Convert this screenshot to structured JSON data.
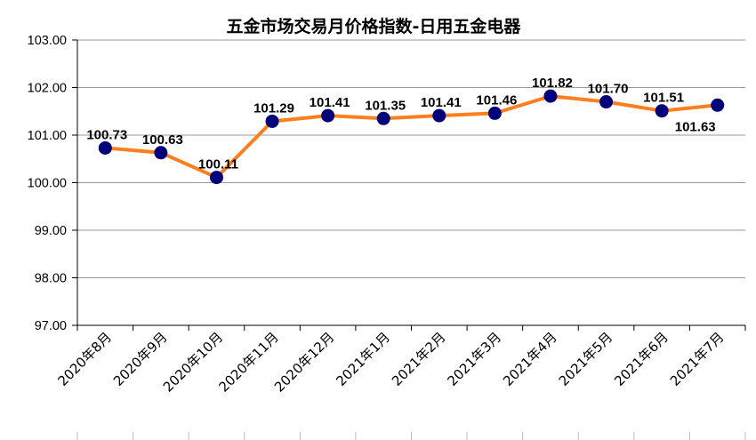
{
  "chart_data": {
    "type": "line",
    "title": "五金市场交易月价格指数-日用五金电器",
    "categories": [
      "2020年8月",
      "2020年9月",
      "2020年10月",
      "2020年11月",
      "2020年12月",
      "2021年1月",
      "2021年2月",
      "2021年3月",
      "2021年4月",
      "2021年5月",
      "2021年6月",
      "2021年7月"
    ],
    "values": [
      100.73,
      100.63,
      100.11,
      101.29,
      101.41,
      101.35,
      101.41,
      101.46,
      101.82,
      101.7,
      101.51,
      101.63
    ],
    "value_labels": [
      "100.73",
      "100.63",
      "100.11",
      "101.29",
      "101.41",
      "101.35",
      "101.41",
      "101.46",
      "101.82",
      "101.70",
      "101.51",
      "101.63"
    ],
    "ylim": [
      97,
      103
    ],
    "yticks": [
      "97.00",
      "98.00",
      "99.00",
      "100.00",
      "101.00",
      "102.00",
      "103.00"
    ],
    "xlabel": "",
    "ylabel": "",
    "grid": true,
    "line_color": "#ff7f1e",
    "marker_color": "#00007a"
  }
}
